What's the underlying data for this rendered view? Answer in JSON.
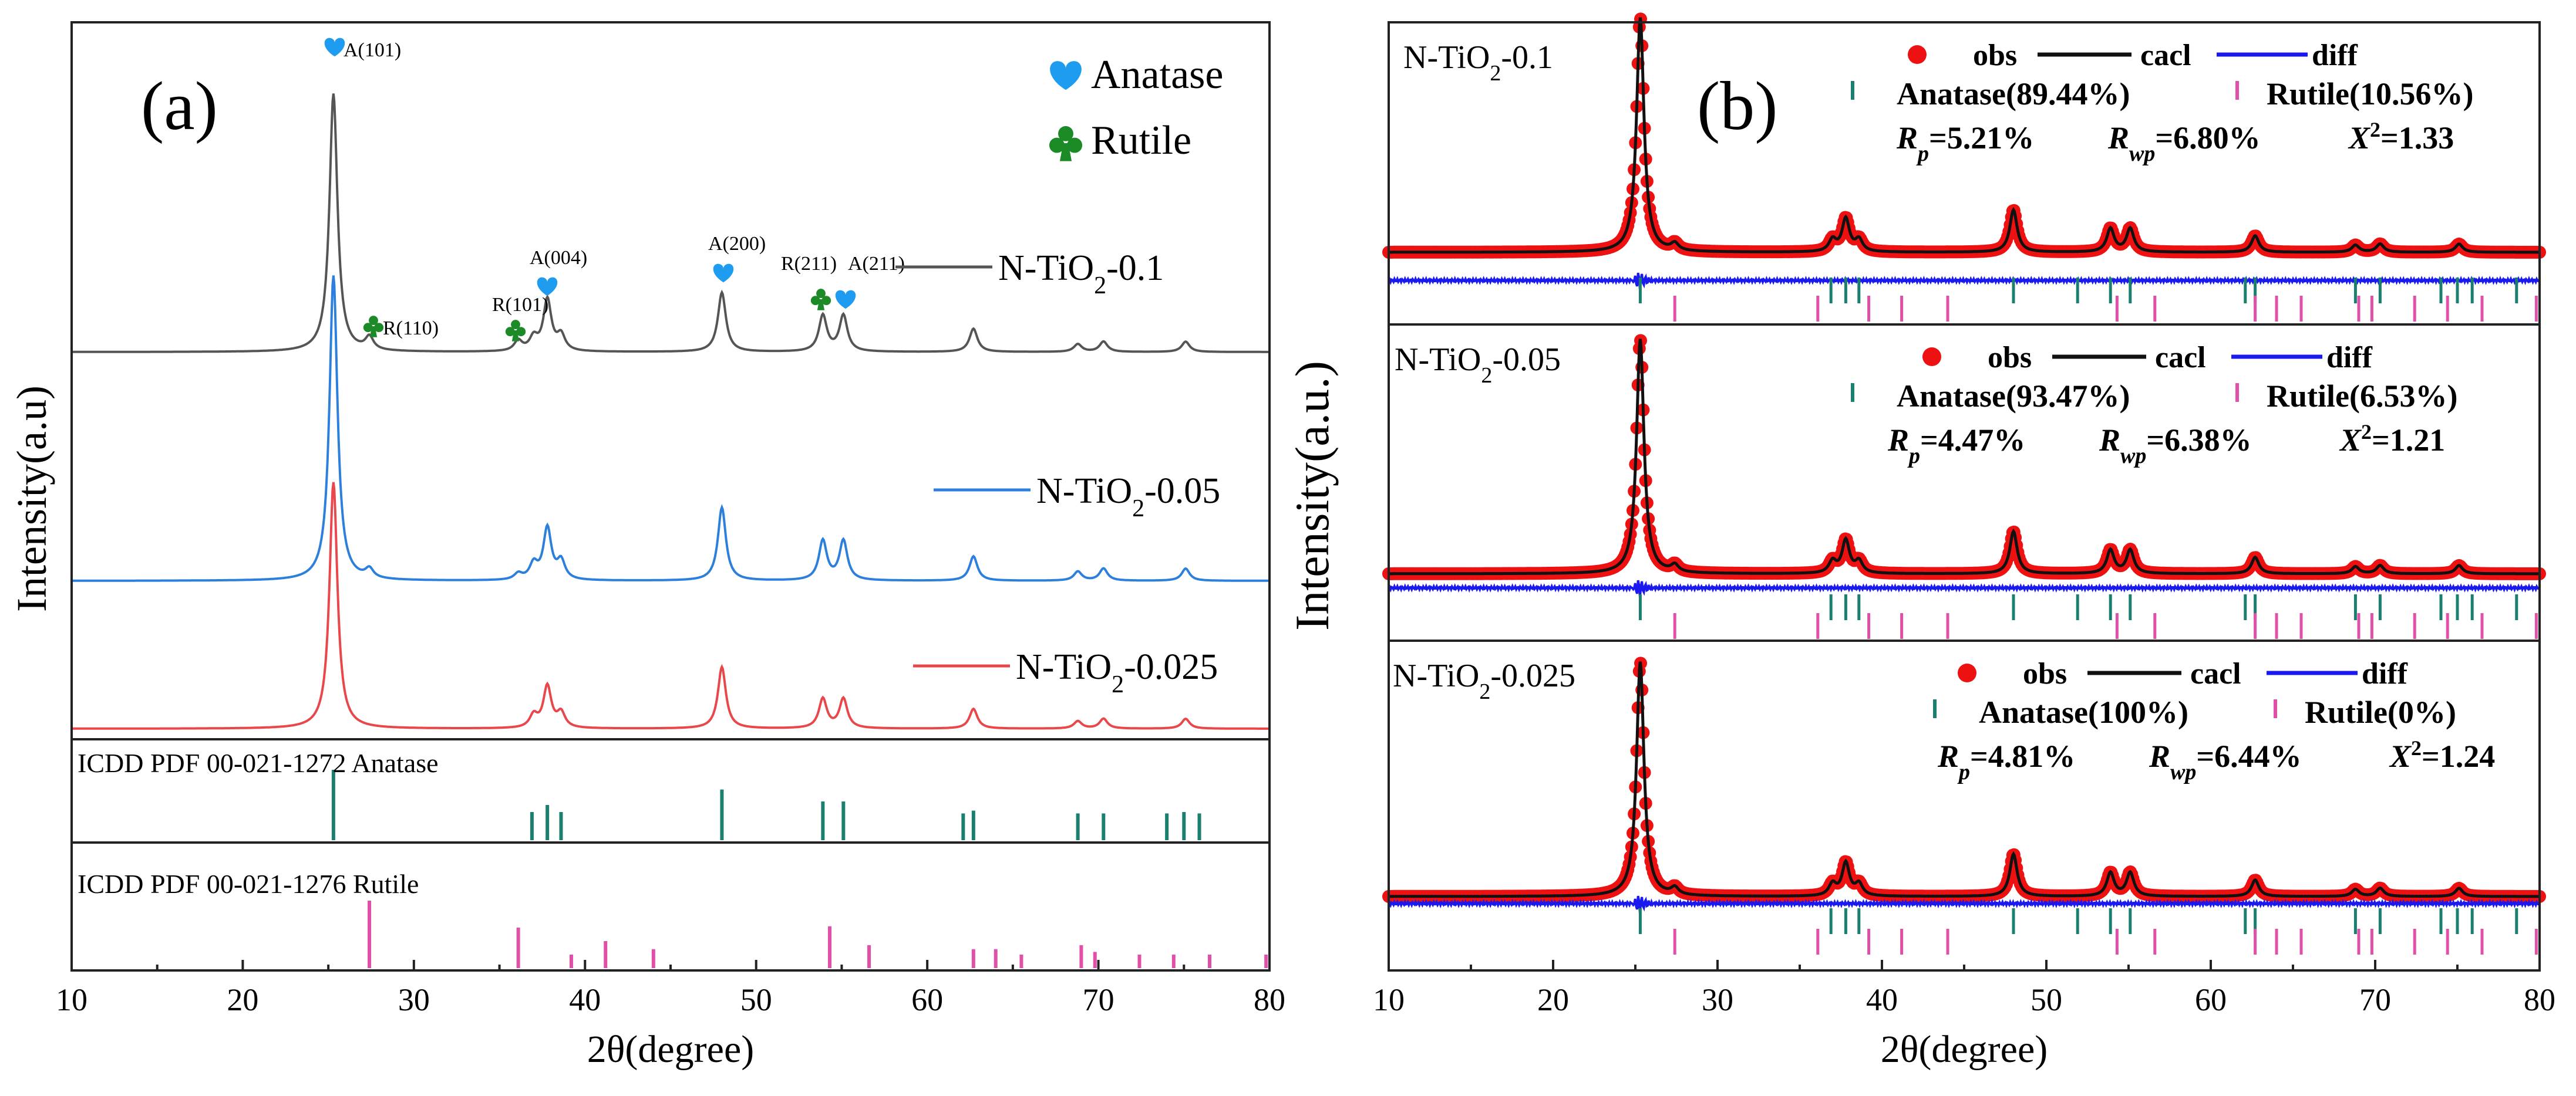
{
  "figure": {
    "panel_a": {
      "letter": "(a)",
      "ylabel": "Intensity(a.u)",
      "xlabel": "2θ(degree)",
      "legend": [
        {
          "name": "Anatase",
          "symbol": "heart",
          "color": "#1e9cf0"
        },
        {
          "name": "Rutile",
          "symbol": "club",
          "color": "#1c8a26"
        }
      ],
      "peak_labels": [
        {
          "text": "A(101)",
          "two_theta": 25.3,
          "sym": "heart"
        },
        {
          "text": "R(110)",
          "two_theta": 27.4,
          "sym": "club"
        },
        {
          "text": "R(101)",
          "two_theta": 36.1,
          "sym": "club"
        },
        {
          "text": "A(004)",
          "two_theta": 37.8,
          "sym": "heart"
        },
        {
          "text": "A(200)",
          "two_theta": 48.0,
          "sym": "heart"
        },
        {
          "text": "R(211)",
          "two_theta": 54.3,
          "sym": "club"
        },
        {
          "text": "A(211)",
          "two_theta": 55.1,
          "sym": "heart"
        }
      ],
      "reference_labels": {
        "anatase": "ICDD PDF 00-021-1272 Anatase",
        "rutile": "ICDD PDF 00-021-1276 Rutile"
      }
    },
    "panel_b": {
      "letter": "(b)",
      "ylabel": "Intensity(a.u.)",
      "xlabel": "2θ(degree)",
      "legend_obs": "obs",
      "legend_calc": "cacl",
      "legend_diff": "diff",
      "subpanels": [
        {
          "sample": "N-TiO",
          "sub": "2",
          "suffix": "-0.1",
          "anatase": "Anatase(89.44%)",
          "rutile": "Rutile(10.56%)",
          "rp": "=5.21%",
          "rwp": "=6.80%",
          "chi": "=1.33"
        },
        {
          "sample": "N-TiO",
          "sub": "2",
          "suffix": "-0.05",
          "anatase": "Anatase(93.47%)",
          "rutile": "Rutile(6.53%)",
          "rp": "=4.47%",
          "rwp": "=6.38%",
          "chi": "=1.21"
        },
        {
          "sample": "N-TiO",
          "sub": "2",
          "suffix": "-0.025",
          "anatase": "Anatase(100%)",
          "rutile": "Rutile(0%)",
          "rp": "=4.81%",
          "rwp": "=6.44%",
          "chi": "=1.24"
        }
      ]
    }
  },
  "chart_data": [
    {
      "type": "line",
      "title": "(a)",
      "xlabel": "2θ(degree)",
      "ylabel": "Intensity(a.u)",
      "xlim": [
        10,
        80
      ],
      "xticks": [
        10,
        20,
        30,
        40,
        50,
        60,
        70,
        80
      ],
      "series": [
        {
          "name": "N-TiO2-0.1",
          "label_main": "N-TiO",
          "label_sub": "2",
          "label_suffix": "-0.1",
          "color": "#555555",
          "peaks": [
            [
              25.3,
              1.0
            ],
            [
              27.4,
              0.05
            ],
            [
              36.1,
              0.04
            ],
            [
              37.0,
              0.05
            ],
            [
              37.8,
              0.2
            ],
            [
              38.6,
              0.06
            ],
            [
              48.0,
              0.23
            ],
            [
              53.9,
              0.14
            ],
            [
              55.1,
              0.14
            ],
            [
              62.7,
              0.09
            ],
            [
              68.8,
              0.03
            ],
            [
              70.3,
              0.04
            ],
            [
              75.1,
              0.04
            ]
          ]
        },
        {
          "name": "N-TiO2-0.05",
          "label_main": "N-TiO",
          "label_sub": "2",
          "label_suffix": "-0.05",
          "color": "#2d7fdc",
          "peaks": [
            [
              25.3,
              1.0
            ],
            [
              27.4,
              0.03
            ],
            [
              36.1,
              0.02
            ],
            [
              37.0,
              0.05
            ],
            [
              37.8,
              0.17
            ],
            [
              38.6,
              0.06
            ],
            [
              48.0,
              0.24
            ],
            [
              53.9,
              0.13
            ],
            [
              55.1,
              0.13
            ],
            [
              62.7,
              0.08
            ],
            [
              68.8,
              0.03
            ],
            [
              70.3,
              0.04
            ],
            [
              75.1,
              0.04
            ]
          ]
        },
        {
          "name": "N-TiO2-0.025",
          "label_main": "N-TiO",
          "label_sub": "2",
          "label_suffix": "-0.025",
          "color": "#e8474b",
          "peaks": [
            [
              25.3,
              1.0
            ],
            [
              37.0,
              0.05
            ],
            [
              37.8,
              0.17
            ],
            [
              38.6,
              0.06
            ],
            [
              48.0,
              0.25
            ],
            [
              53.9,
              0.12
            ],
            [
              55.1,
              0.12
            ],
            [
              62.7,
              0.08
            ],
            [
              68.8,
              0.03
            ],
            [
              70.3,
              0.04
            ],
            [
              75.1,
              0.04
            ]
          ]
        }
      ],
      "reference": {
        "anatase": {
          "color": "#1a7f6e",
          "positions": [
            25.3,
            36.9,
            37.8,
            38.6,
            48.0,
            53.9,
            55.1,
            62.1,
            62.7,
            68.8,
            70.3,
            74.0,
            75.0,
            75.9
          ],
          "heights": [
            1.0,
            0.4,
            0.5,
            0.4,
            0.72,
            0.55,
            0.55,
            0.38,
            0.42,
            0.38,
            0.38,
            0.38,
            0.4,
            0.38
          ]
        },
        "rutile": {
          "color": "#e050a8",
          "positions": [
            27.4,
            36.1,
            39.2,
            41.2,
            44.0,
            54.3,
            56.6,
            62.7,
            64.0,
            65.5,
            69.0,
            69.8,
            72.4,
            74.4,
            76.5,
            79.8
          ],
          "heights": [
            1.0,
            0.6,
            0.2,
            0.4,
            0.28,
            0.62,
            0.34,
            0.28,
            0.28,
            0.2,
            0.34,
            0.24,
            0.2,
            0.2,
            0.2,
            0.2
          ]
        }
      }
    },
    {
      "type": "line",
      "title": "(b)",
      "xlabel": "2θ(degree)",
      "ylabel": "Intensity(a.u.)",
      "xlim": [
        10,
        80
      ],
      "xticks": [
        10,
        20,
        30,
        40,
        50,
        60,
        70,
        80
      ],
      "series_names": [
        "obs",
        "cacl",
        "diff"
      ],
      "colors": {
        "obs": "#ee1111",
        "calc": "#111111",
        "diff": "#1a1aee",
        "anatase_tick": "#1a7f6e",
        "rutile_tick": "#e050a8"
      },
      "peaks": [
        [
          25.3,
          1.0
        ],
        [
          27.4,
          0.03
        ],
        [
          37.0,
          0.05
        ],
        [
          37.8,
          0.14
        ],
        [
          38.6,
          0.05
        ],
        [
          48.0,
          0.18
        ],
        [
          53.9,
          0.1
        ],
        [
          55.1,
          0.1
        ],
        [
          62.7,
          0.07
        ],
        [
          68.8,
          0.03
        ],
        [
          70.3,
          0.035
        ],
        [
          75.1,
          0.035
        ]
      ],
      "anatase_ticks": [
        25.3,
        36.9,
        37.8,
        38.6,
        48.0,
        51.9,
        53.9,
        55.1,
        62.1,
        62.7,
        68.8,
        70.3,
        74.0,
        75.0,
        75.9,
        78.6
      ],
      "rutile_ticks": [
        27.4,
        36.1,
        39.2,
        41.2,
        44.0,
        54.3,
        56.6,
        62.7,
        64.0,
        65.5,
        69.0,
        69.8,
        72.4,
        74.4,
        76.5,
        79.8
      ]
    }
  ]
}
